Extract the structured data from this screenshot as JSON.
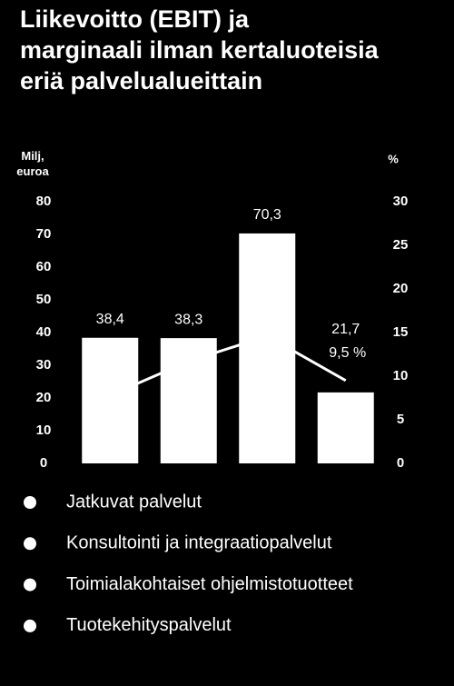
{
  "chart_data": {
    "type": "bar-line",
    "title": "Liikevoitto (EBIT) ja\nmarginaali ilman kertaluoteisia\neriä palvelualueittain",
    "y_label": "Milj,\neuroa",
    "y2_label": "%",
    "categories": [
      "Jatkuvat palvelut",
      "Konsultointi ja integraatiopalvelut",
      "Toimialakohtaiset ohjelmistotuotteet",
      "Tuotekehityspalvelut"
    ],
    "series": [
      {
        "type": "bar",
        "color": "#ffffff",
        "values": [
          38.4,
          38.3,
          70.3,
          21.7
        ],
        "value_labels": [
          "38,4",
          "38,3",
          "70,3",
          "21,7"
        ]
      },
      {
        "type": "line",
        "axis": "y2",
        "color": "#ffffff",
        "values": [
          7.8,
          11.7,
          14.6,
          9.5
        ],
        "value_labels": [
          null,
          null,
          null,
          "9,5 %"
        ]
      }
    ],
    "ylim": [
      0,
      80
    ],
    "yticks": [
      0,
      10,
      20,
      30,
      40,
      50,
      60,
      70,
      80
    ],
    "y2lim": [
      0,
      30
    ],
    "y2ticks": [
      0,
      5,
      10,
      15,
      20,
      25,
      30
    ],
    "legend_color": "#ffffff"
  }
}
